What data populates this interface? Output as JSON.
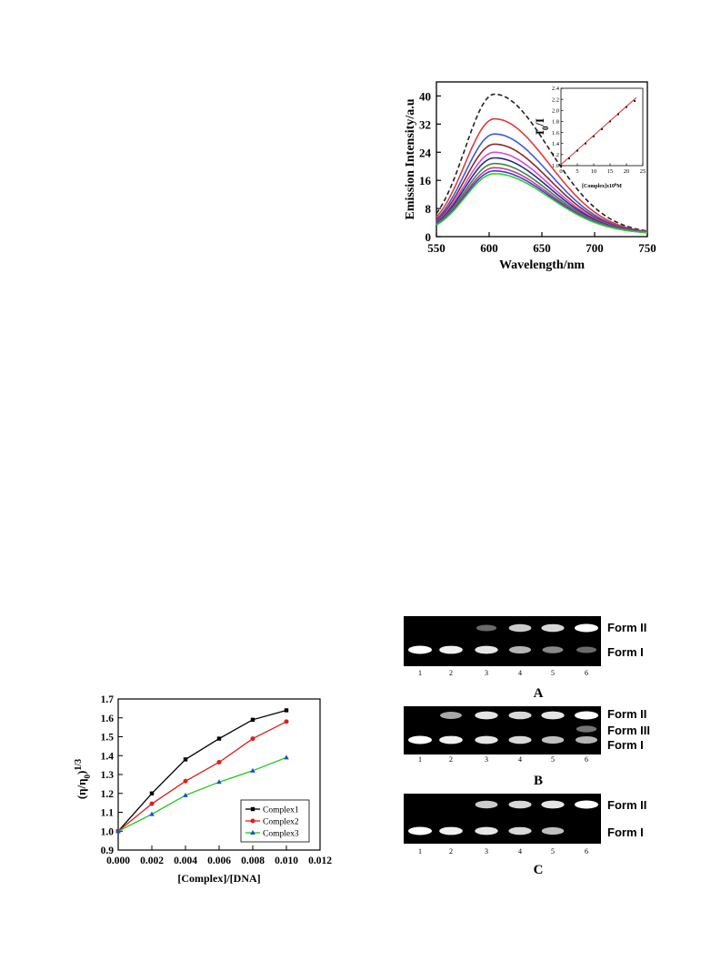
{
  "emission_chart": {
    "chart_data": {
      "type": "line",
      "xlabel": "Wavelength/nm",
      "ylabel": "Emission Intensity/a.u",
      "xlim": [
        550,
        750
      ],
      "ylim": [
        0,
        44
      ],
      "x_ticks": [
        "550",
        "600",
        "650",
        "700",
        "750"
      ],
      "y_ticks": [
        "0",
        "8",
        "16",
        "24",
        "32",
        "40"
      ],
      "peak_wavelength": 605,
      "series": [
        {
          "peak": 40.5,
          "color": "#222222",
          "dashed": true
        },
        {
          "peak": 33.5,
          "color": "#e23a3a"
        },
        {
          "peak": 29.2,
          "color": "#3b5bd9"
        },
        {
          "peak": 26.3,
          "color": "#8a2a2a"
        },
        {
          "peak": 24.0,
          "color": "#d64bd6"
        },
        {
          "peak": 22.4,
          "color": "#2a2a8a"
        },
        {
          "peak": 20.8,
          "color": "#3a8a3a"
        },
        {
          "peak": 19.6,
          "color": "#c03aa0"
        },
        {
          "peak": 18.7,
          "color": "#4a3ad0"
        },
        {
          "peak": 17.9,
          "color": "#2ed12e"
        }
      ]
    },
    "inset": {
      "ylabel": "I0/I",
      "xlabel": "[Complex]x10^6 M",
      "xlim": [
        0,
        25
      ],
      "ylim": [
        1.0,
        2.4
      ],
      "x_ticks": [
        "0",
        "5",
        "10",
        "15",
        "20",
        "25"
      ],
      "y_ticks": [
        "1.0",
        "1.2",
        "1.4",
        "1.6",
        "1.8",
        "2.0",
        "2.2",
        "2.4"
      ],
      "points": [
        [
          0,
          1.0
        ],
        [
          2.5,
          1.13
        ],
        [
          5,
          1.27
        ],
        [
          7.5,
          1.4
        ],
        [
          10,
          1.53
        ],
        [
          12.5,
          1.66
        ],
        [
          15,
          1.8
        ],
        [
          17.5,
          1.93
        ],
        [
          20,
          2.06
        ],
        [
          22.5,
          2.17
        ]
      ],
      "fit": [
        [
          0,
          1.02
        ],
        [
          23,
          2.23
        ]
      ]
    }
  },
  "viscosity_chart": {
    "chart_data": {
      "type": "line",
      "xlabel": "[Complex]/[DNA]",
      "ylabel": "(η/η0)1/3",
      "xlim": [
        0.0,
        0.012
      ],
      "ylim": [
        0.9,
        1.7
      ],
      "x_ticks": [
        "0.000",
        "0.002",
        "0.004",
        "0.006",
        "0.008",
        "0.010",
        "0.012"
      ],
      "y_ticks": [
        "0.9",
        "1.0",
        "1.1",
        "1.2",
        "1.3",
        "1.4",
        "1.5",
        "1.6",
        "1.7"
      ],
      "x": [
        0.0,
        0.002,
        0.004,
        0.006,
        0.008,
        0.01
      ],
      "series": [
        {
          "name": "Complex1",
          "color": "#000000",
          "marker": "square",
          "values": [
            1.0,
            1.2,
            1.38,
            1.49,
            1.59,
            1.64
          ]
        },
        {
          "name": "Complex2",
          "color": "#e11b1b",
          "marker": "circle",
          "values": [
            1.0,
            1.145,
            1.265,
            1.365,
            1.49,
            1.58
          ]
        },
        {
          "name": "Complex3",
          "color": "#18c818",
          "marker": "triangle",
          "values": [
            1.0,
            1.09,
            1.19,
            1.26,
            1.32,
            1.39
          ]
        }
      ],
      "legend_position": "bottom-right"
    }
  },
  "gels": {
    "panel_a": {
      "letter": "A",
      "lane_numbers": [
        "1",
        "2",
        "3",
        "4",
        "5",
        "6"
      ],
      "labels": [
        "Form  II",
        "Form I"
      ],
      "form2_intensity": [
        0,
        0,
        0.35,
        0.8,
        0.85,
        1.0
      ],
      "form1_intensity": [
        1.0,
        0.95,
        0.9,
        0.7,
        0.5,
        0.35
      ]
    },
    "panel_b": {
      "letter": "B",
      "lane_numbers": [
        "1",
        "2",
        "3",
        "4",
        "5",
        "6"
      ],
      "labels": [
        "Form  II",
        "Form III",
        "Form I"
      ],
      "form2_intensity": [
        0,
        0.65,
        0.9,
        0.85,
        0.9,
        1.0
      ],
      "form3_intensity": [
        0,
        0,
        0,
        0,
        0,
        0.4
      ],
      "form1_intensity": [
        1.0,
        0.95,
        0.9,
        0.85,
        0.75,
        0.7
      ]
    },
    "panel_c": {
      "letter": "C",
      "lane_numbers": [
        "1",
        "2",
        "3",
        "4",
        "5",
        "6"
      ],
      "labels": [
        "Form  II",
        "Form I"
      ],
      "form2_intensity": [
        0,
        0,
        0.8,
        0.85,
        0.9,
        1.0
      ],
      "form1_intensity": [
        1.0,
        0.95,
        0.9,
        0.85,
        0.75,
        0
      ]
    }
  }
}
